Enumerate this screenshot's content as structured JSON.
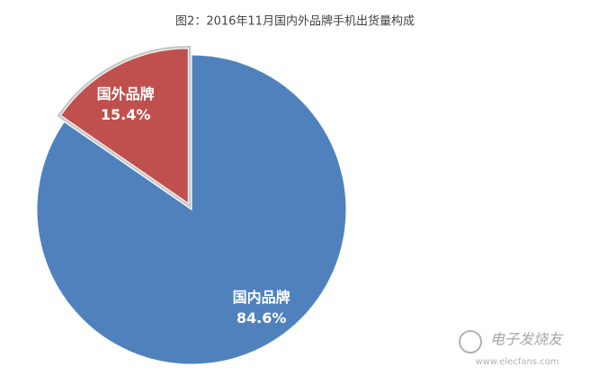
{
  "chart_data": {
    "type": "pie",
    "title": "图2：2016年11月国内外品牌手机出货量构成",
    "categories": [
      "国内品牌",
      "国外品牌"
    ],
    "values": [
      84.6,
      15.4
    ],
    "value_labels": [
      "84.6%",
      "15.4%"
    ],
    "colors": [
      "#4f81bd",
      "#c0504d"
    ],
    "explode": [
      false,
      true
    ]
  },
  "watermark": {
    "brand": "电子发烧友",
    "url": "www.elecfans.com"
  }
}
